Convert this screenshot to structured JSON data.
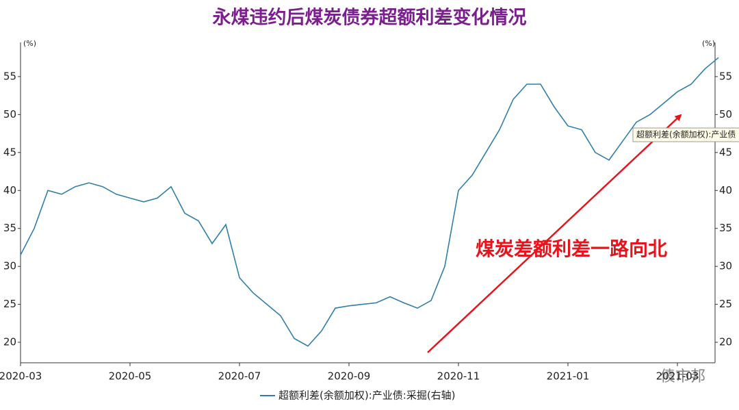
{
  "chart_data": {
    "type": "line",
    "title": "永煤违约后煤炭债券超额利差变化情况",
    "y_label": "(%)",
    "y2_label": "(%)",
    "categories": [
      "2020-03",
      null,
      null,
      null,
      null,
      null,
      null,
      null,
      "2020-05",
      null,
      null,
      null,
      null,
      null,
      null,
      null,
      "2020-07",
      null,
      null,
      null,
      null,
      null,
      null,
      null,
      "2020-09",
      null,
      null,
      null,
      null,
      null,
      null,
      null,
      "2020-11",
      null,
      null,
      null,
      null,
      null,
      null,
      null,
      "2021-01",
      null,
      null,
      null,
      null,
      null,
      null,
      null,
      "2021-03",
      null,
      null,
      null
    ],
    "series": [
      {
        "name": "超额利差(余额加权):产业债:采掘(右轴)",
        "color": "#2e7fa8",
        "axis": "y2",
        "values": [
          31.5,
          35,
          40,
          39.5,
          40.5,
          41,
          40.5,
          39.5,
          39,
          38.5,
          39,
          40.5,
          37,
          36,
          33,
          35.5,
          28.5,
          26.5,
          25,
          23.5,
          20.5,
          19.5,
          21.5,
          24.5,
          24.8,
          25,
          25.2,
          26,
          25.2,
          24.5,
          25.5,
          30,
          40,
          42,
          45,
          48,
          52,
          54,
          54,
          51,
          48.5,
          48,
          45,
          44,
          46.5,
          49,
          50,
          51.5,
          53,
          54,
          56,
          57.5
        ]
      }
    ],
    "ylim": [
      17.3,
      59.5
    ],
    "yticks": [
      20,
      25,
      30,
      35,
      40,
      45,
      50,
      55
    ],
    "y2lim": [
      17.3,
      59.5
    ],
    "y2ticks": [
      20,
      25,
      30,
      35,
      40,
      45,
      50,
      55
    ],
    "annotations": [
      "煤炭差额利差一路向北",
      "超额利差(余额加权):产业债",
      "债市邦"
    ],
    "grid": false
  }
}
